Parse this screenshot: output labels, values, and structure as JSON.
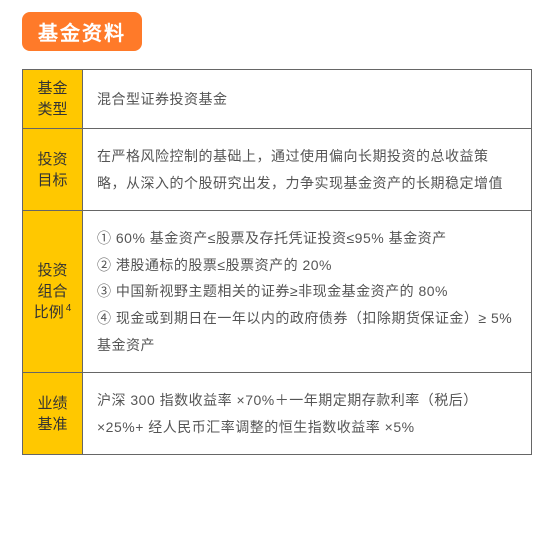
{
  "header": {
    "title": "基金资料"
  },
  "table": {
    "label_bg": "#ffc800",
    "header_bg": "#ff7a29",
    "border_color": "#666666",
    "text_color": "#555555",
    "rows": [
      {
        "label_line1": "基金",
        "label_line2": "类型",
        "footnote": "",
        "content": [
          "混合型证券投资基金"
        ]
      },
      {
        "label_line1": "投资",
        "label_line2": "目标",
        "footnote": "",
        "content": [
          "在严格风险控制的基础上，通过使用偏向长期投资的总收益策略，从深入的个股研究出发，力争实现基金资产的长期稳定增值"
        ]
      },
      {
        "label_line1": "投资",
        "label_line2": "组合",
        "label_line3": "比例",
        "footnote": "4",
        "content": [
          "① 60% 基金资产≤股票及存托凭证投资≤95% 基金资产",
          "② 港股通标的股票≤股票资产的 20%",
          "③ 中国新视野主题相关的证券≥非现金基金资产的 80%",
          "④ 现金或到期日在一年以内的政府债券（扣除期货保证金）≥ 5% 基金资产"
        ]
      },
      {
        "label_line1": "业绩",
        "label_line2": "基准",
        "footnote": "",
        "content": [
          "沪深 300 指数收益率 ×70%＋一年期定期存款利率（税后）×25%+ 经人民币汇率调整的恒生指数收益率 ×5%"
        ]
      }
    ]
  }
}
